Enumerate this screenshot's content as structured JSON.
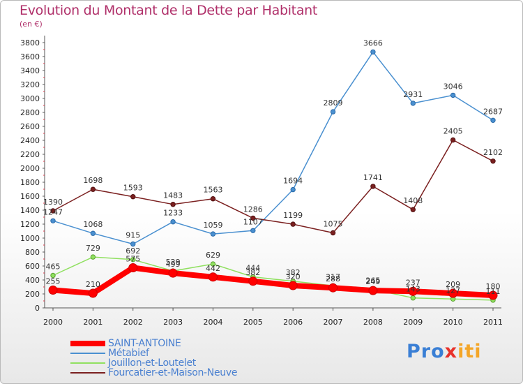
{
  "chart_data": {
    "type": "line",
    "title": "Evolution du Montant de la Dette par Habitant",
    "subtitle": "(en €)",
    "xlabel": "",
    "ylabel": "",
    "ylim": [
      0,
      3800
    ],
    "ytick_step": 200,
    "grid": false,
    "categories": [
      "2000",
      "2001",
      "2002",
      "2003",
      "2004",
      "2005",
      "2006",
      "2007",
      "2008",
      "2009",
      "2010",
      "2011"
    ],
    "series": [
      {
        "name": "SAINT-ANTOINE",
        "color": "#ff0000",
        "values": [
          255,
          210,
          575,
          499,
          442,
          382,
          320,
          288,
          249,
          237,
          209,
          180
        ]
      },
      {
        "name": "Métabief",
        "color": "#4a90d0",
        "values": [
          1247,
          1068,
          915,
          1233,
          1059,
          1107,
          1694,
          2809,
          3666,
          2931,
          3046,
          2687
        ]
      },
      {
        "name": "Jouillon-et-Loutelet",
        "color": "#90e060",
        "values": [
          465,
          729,
          692,
          529,
          629,
          444,
          382,
          317,
          265,
          143,
          127,
          111
        ]
      },
      {
        "name": "Fourcatier-et-Maison-Neuve",
        "color": "#7b2020",
        "values": [
          1390,
          1698,
          1593,
          1483,
          1563,
          1286,
          1199,
          1075,
          1741,
          1408,
          2405,
          2102
        ]
      }
    ],
    "legend_position": "bottom-left"
  },
  "logo": {
    "parts": [
      {
        "text": "Pro",
        "color": "#3a7fd5"
      },
      {
        "text": "x",
        "color": "#e8312a"
      },
      {
        "text": "iti",
        "color": "#f4a628"
      }
    ]
  }
}
